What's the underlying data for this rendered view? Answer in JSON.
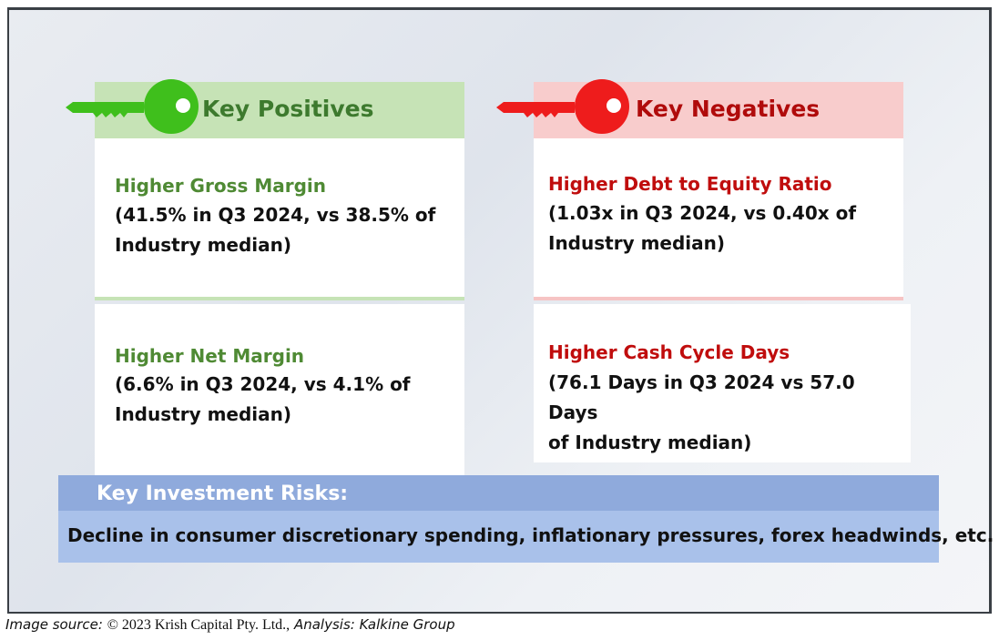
{
  "positives": {
    "header": "Key Positives",
    "items": [
      {
        "title": "Higher Gross Margin",
        "lines": [
          "(41.5% in Q3 2024, vs 38.5% of",
          "Industry median)"
        ]
      },
      {
        "title": "Higher Net Margin",
        "lines": [
          "(6.6% in Q3 2024, vs 4.1% of",
          "Industry median)"
        ]
      }
    ]
  },
  "negatives": {
    "header": "Key Negatives",
    "items": [
      {
        "title": "Higher Debt to Equity Ratio",
        "lines": [
          "(1.03x in Q3 2024, vs 0.40x of",
          "Industry median)"
        ]
      },
      {
        "title": "Higher Cash Cycle Days",
        "lines": [
          "(76.1 Days in Q3 2024 vs 57.0 Days",
          "of Industry median)"
        ]
      }
    ]
  },
  "risks": {
    "header": "Key Investment Risks:",
    "text": "Decline in consumer discretionary spending, inflationary pressures, forex headwinds, etc."
  },
  "caption": {
    "source_label": "Image source:",
    "source_value": "© 2023 Krish Capital Pty. Ltd.,",
    "analysis_label": "Analysis:",
    "analysis_value": "Kalkine Group"
  },
  "colors": {
    "positive_header_bg": "#c6e3b6",
    "positive_key": "#3fbf1c",
    "positive_text": "#4f8a34",
    "negative_header_bg": "#f8cccc",
    "negative_key": "#ee1c1c",
    "negative_text": "#c00d0d",
    "risk_header_bg": "#8faadc",
    "risk_body_bg": "#a9c1ea"
  },
  "icons": {
    "positive": "green-key-icon",
    "negative": "red-key-icon"
  }
}
